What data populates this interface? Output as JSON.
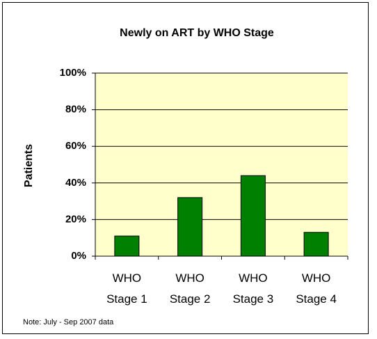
{
  "chart_data": {
    "type": "bar",
    "title": "Newly on ART by WHO Stage",
    "categories": [
      "WHO Stage 1",
      "WHO Stage 2",
      "WHO Stage 3",
      "WHO Stage 4"
    ],
    "values": [
      11,
      32,
      44,
      13
    ],
    "color": "#008000",
    "y_label": "Patients",
    "ylim": [
      0,
      100
    ],
    "yticks": [
      {
        "value": 0,
        "label": "0%"
      },
      {
        "value": 20,
        "label": "20%"
      },
      {
        "value": 40,
        "label": "40%"
      },
      {
        "value": 60,
        "label": "60%"
      },
      {
        "value": 80,
        "label": "80%"
      },
      {
        "value": 100,
        "label": "100%"
      }
    ],
    "grid": true,
    "note": "Note: July - Sep 2007 data"
  }
}
